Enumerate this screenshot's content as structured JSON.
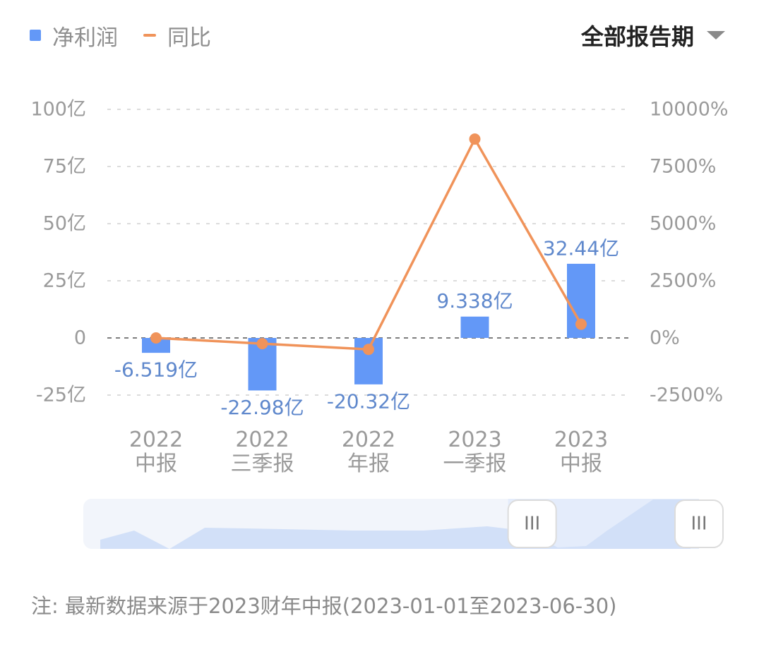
{
  "legend": {
    "bar_label": "净利润",
    "line_label": "同比"
  },
  "period_select": {
    "label": "全部报告期",
    "icon": "chevron-down-icon"
  },
  "colors": {
    "bar": "#6398f7",
    "line": "#f0935a",
    "bar_label": "#5f88cc",
    "axis_text": "#9a9a9a",
    "grid": "#dcdcdc",
    "zero_line": "#7d7d7d",
    "slider_track": "#f2f5fb",
    "slider_fill": "#d2e0f8",
    "slider_window": "#e4ecfb"
  },
  "chart_data": {
    "type": "bar",
    "categories": [
      [
        "2022",
        "中报"
      ],
      [
        "2022",
        "三季报"
      ],
      [
        "2022",
        "年报"
      ],
      [
        "2023",
        "一季报"
      ],
      [
        "2023",
        "中报"
      ]
    ],
    "series": [
      {
        "name": "净利润",
        "type": "bar",
        "axis": "left",
        "values": [
          -6.519,
          -22.98,
          -20.32,
          9.338,
          32.44
        ],
        "labels": [
          "-6.519亿",
          "-22.98亿",
          "-20.32亿",
          "9.338亿",
          "32.44亿"
        ]
      },
      {
        "name": "同比",
        "type": "line",
        "axis": "right",
        "values": [
          0,
          -250,
          -500,
          8700,
          600
        ]
      }
    ],
    "y_left": {
      "ylim": [
        -25,
        100
      ],
      "ticks": [
        100,
        75,
        50,
        25,
        0,
        -25
      ],
      "tick_labels": [
        "100亿",
        "75亿",
        "50亿",
        "25亿",
        "0",
        "-25亿"
      ]
    },
    "y_right": {
      "ylim": [
        -2500,
        10000
      ],
      "ticks": [
        10000,
        7500,
        5000,
        2500,
        0,
        -2500
      ],
      "tick_labels": [
        "10000%",
        "7500%",
        "5000%",
        "2500%",
        "0%",
        "-2500%"
      ]
    },
    "grid": true,
    "legend_position": "top-left"
  },
  "slider": {
    "handle_left_glyph": "III",
    "handle_right_glyph": "III",
    "window_start": 0.69,
    "window_end": 1.0
  },
  "note": {
    "text": "注: 最新数据来源于2023财年中报(2023-01-01至2023-06-30)"
  }
}
